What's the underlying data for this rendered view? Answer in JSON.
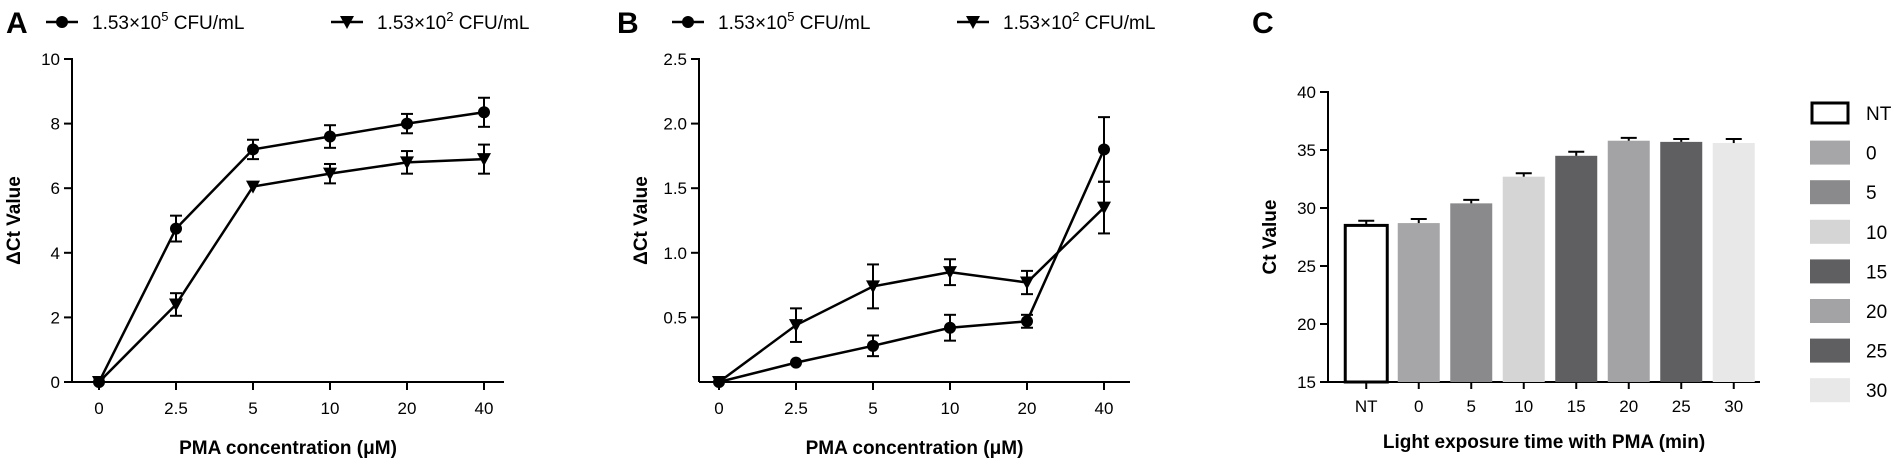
{
  "chart_data": [
    {
      "panel": "A",
      "type": "line",
      "xlabel": "PMA concentration (μM)",
      "ylabel": "ΔCt Value",
      "categories": [
        "0",
        "2.5",
        "5",
        "10",
        "20",
        "40"
      ],
      "ylim": [
        0,
        10
      ],
      "yticks": [
        "0",
        "2",
        "4",
        "6",
        "8",
        "10"
      ],
      "legend_position": "top",
      "series": [
        {
          "name_base": "1.53×10",
          "name_exp": "5",
          "name_unit": " CFU/mL",
          "marker": "circle",
          "values": [
            0,
            4.75,
            7.2,
            7.6,
            8.0,
            8.35
          ],
          "errors": [
            0,
            0.4,
            0.3,
            0.35,
            0.3,
            0.45
          ]
        },
        {
          "name_base": "1.53×10",
          "name_exp": "2",
          "name_unit": " CFU/mL",
          "marker": "triangle-down",
          "values": [
            0,
            2.4,
            6.05,
            6.45,
            6.8,
            6.9
          ],
          "errors": [
            0,
            0.35,
            0.0,
            0.3,
            0.35,
            0.45
          ]
        }
      ]
    },
    {
      "panel": "B",
      "type": "line",
      "xlabel": "PMA concentration (μM)",
      "ylabel": "ΔCt Value",
      "categories": [
        "0",
        "2.5",
        "5",
        "10",
        "20",
        "40"
      ],
      "ylim": [
        0,
        2.5
      ],
      "yticks": [
        "0.5",
        "1.0",
        "1.5",
        "2.0",
        "2.5"
      ],
      "legend_position": "top",
      "series": [
        {
          "name_base": "1.53×10",
          "name_exp": "5",
          "name_unit": " CFU/mL",
          "marker": "circle",
          "values": [
            0,
            0.15,
            0.28,
            0.42,
            0.47,
            1.8
          ],
          "errors": [
            0,
            0.0,
            0.08,
            0.1,
            0.05,
            0.25
          ]
        },
        {
          "name_base": "1.53×10",
          "name_exp": "2",
          "name_unit": " CFU/mL",
          "marker": "triangle-down",
          "values": [
            0,
            0.44,
            0.74,
            0.85,
            0.77,
            1.35
          ],
          "errors": [
            0,
            0.13,
            0.17,
            0.1,
            0.09,
            0.2
          ]
        }
      ]
    },
    {
      "panel": "C",
      "type": "bar",
      "xlabel": "Light exposure time with PMA (min)",
      "ylabel": "Ct Value",
      "categories": [
        "NT",
        "0",
        "5",
        "10",
        "15",
        "20",
        "25",
        "30"
      ],
      "values": [
        28.5,
        28.7,
        30.4,
        32.7,
        34.5,
        35.8,
        35.7,
        35.6
      ],
      "errors": [
        0.4,
        0.35,
        0.3,
        0.3,
        0.35,
        0.25,
        0.25,
        0.35
      ],
      "colors": [
        "#ffffff",
        "#a6a6a8",
        "#8a8a8c",
        "#d5d5d5",
        "#5f5f61",
        "#a3a3a5",
        "#5f5f61",
        "#e8e8e8"
      ],
      "ylim": [
        15,
        40
      ],
      "yticks": [
        "15",
        "20",
        "25",
        "30",
        "35",
        "40"
      ],
      "legend_position": "right",
      "legend": [
        "NT",
        "0",
        "5",
        "10",
        "15",
        "20",
        "25",
        "30"
      ]
    }
  ]
}
